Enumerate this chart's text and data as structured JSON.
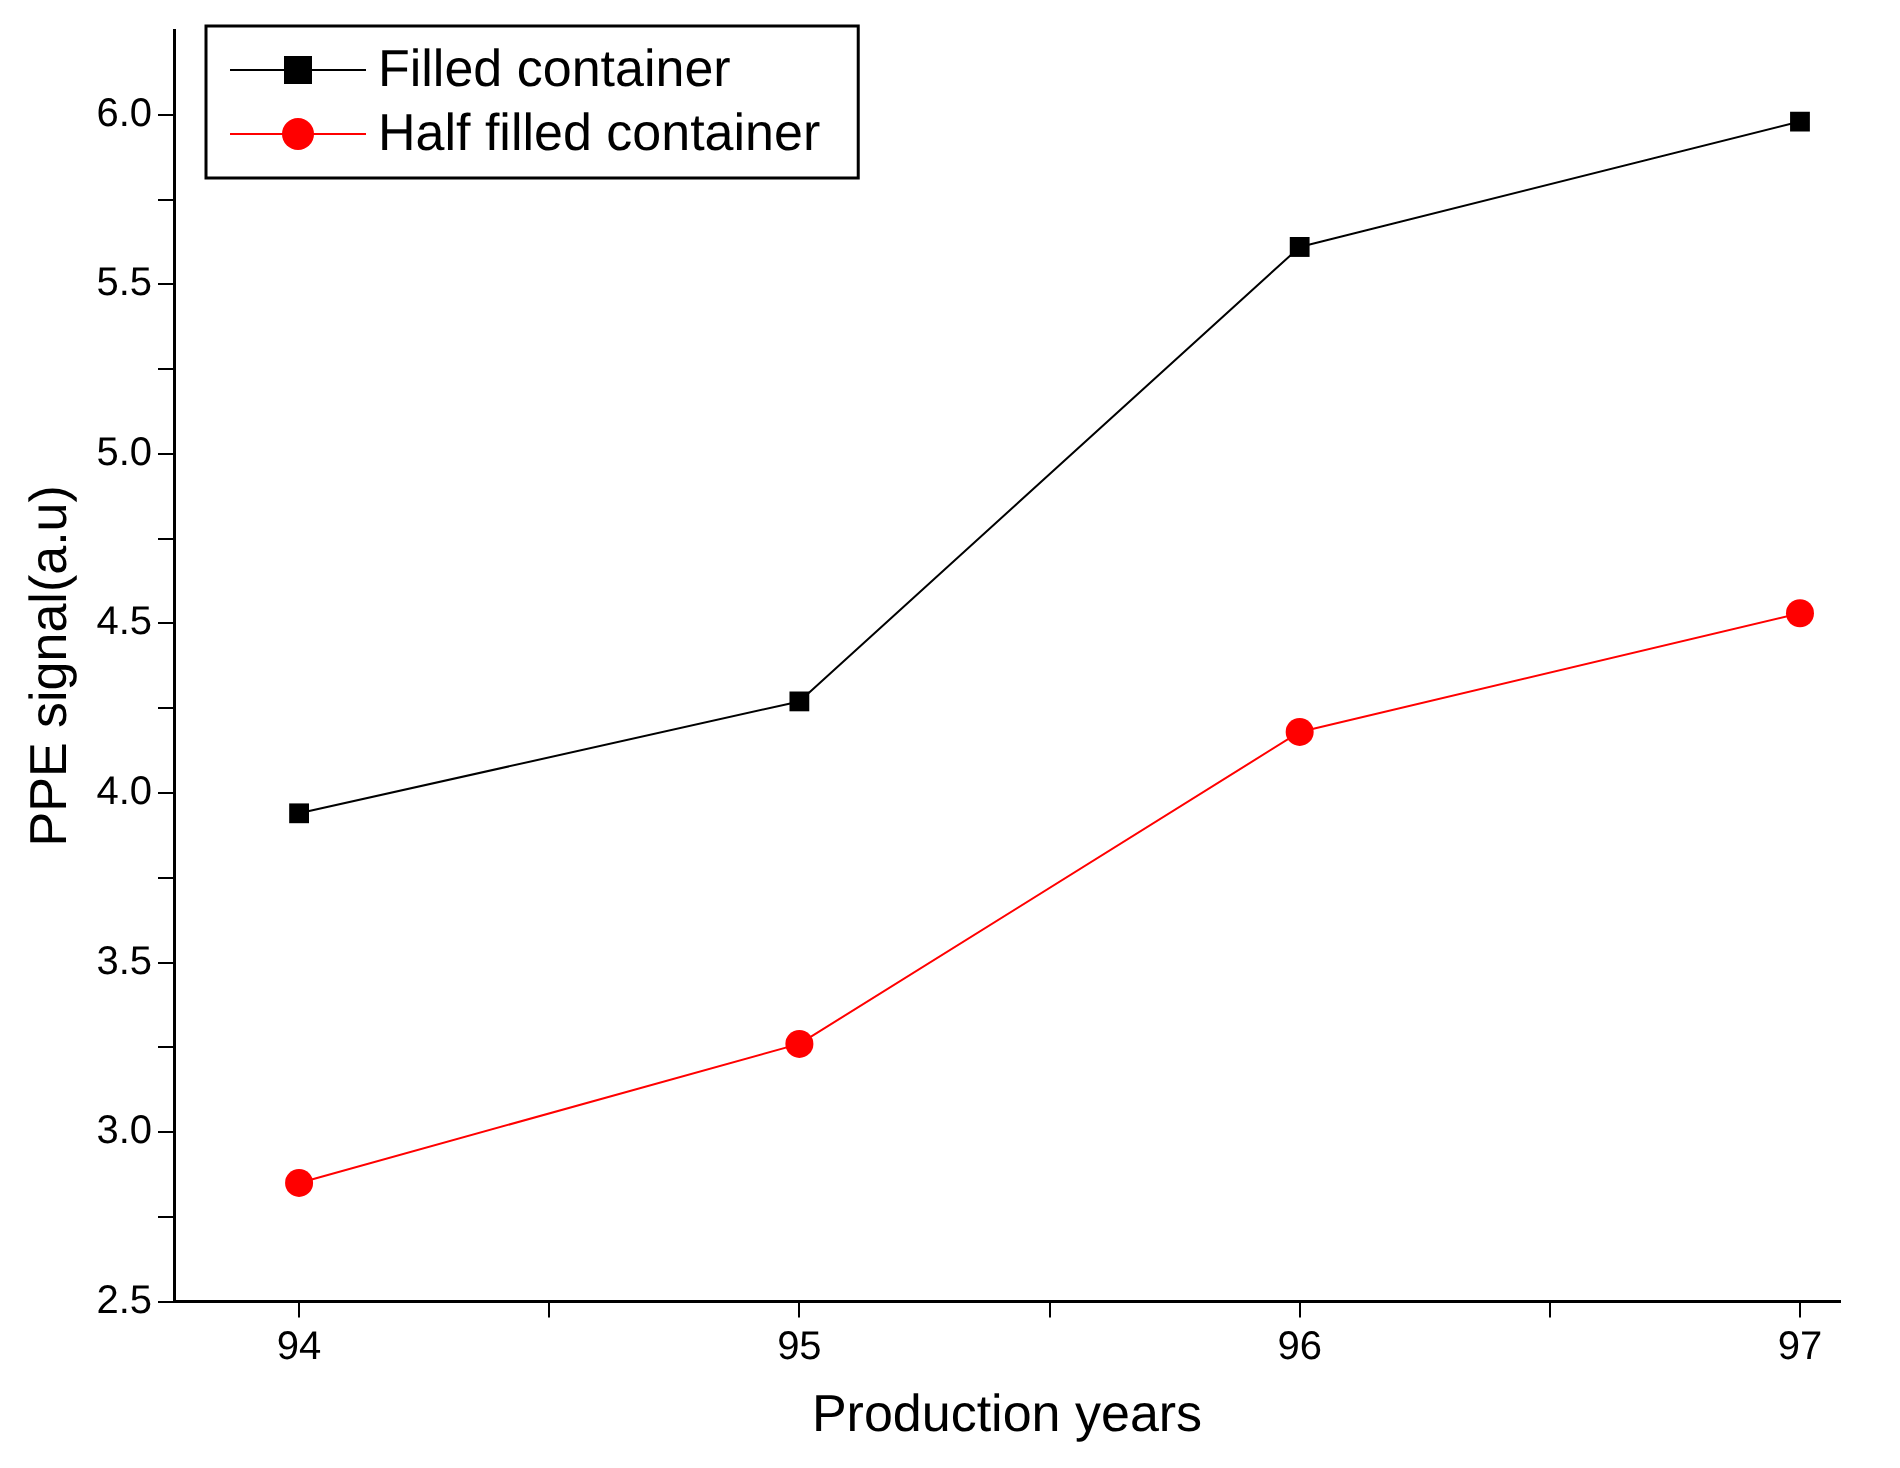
{
  "chart_data": {
    "type": "line",
    "xlabel": "Production years",
    "ylabel": "PPE signal(a.u)",
    "x": [
      94,
      95,
      96,
      97
    ],
    "series": [
      {
        "name": "Filled container",
        "color": "#000000",
        "marker": "square",
        "values": [
          3.94,
          4.27,
          5.61,
          5.98
        ]
      },
      {
        "name": "Half filled container",
        "color": "#ff0000",
        "marker": "circle",
        "values": [
          2.85,
          3.26,
          4.18,
          4.53
        ]
      }
    ],
    "xlim": [
      93.75,
      97.08
    ],
    "ylim": [
      2.5,
      6.25
    ],
    "xticks": [
      94,
      {
        "value": 94.5,
        "label": null
      },
      95,
      {
        "value": 95.5,
        "label": null
      },
      96,
      {
        "value": 96.5,
        "label": null
      },
      97
    ],
    "yticks": [
      2.5,
      {
        "value": 2.75,
        "label": null
      },
      "3.0",
      {
        "value": 3.25,
        "label": null
      },
      3.5,
      {
        "value": 3.75,
        "label": null
      },
      "4.0",
      {
        "value": 4.25,
        "label": null
      },
      4.5,
      {
        "value": 4.75,
        "label": null
      },
      "5.0",
      {
        "value": 5.25,
        "label": null
      },
      5.5,
      {
        "value": 5.75,
        "label": null
      },
      "6.0"
    ],
    "grid": false,
    "legend": "top left",
    "line_style": "solid"
  }
}
